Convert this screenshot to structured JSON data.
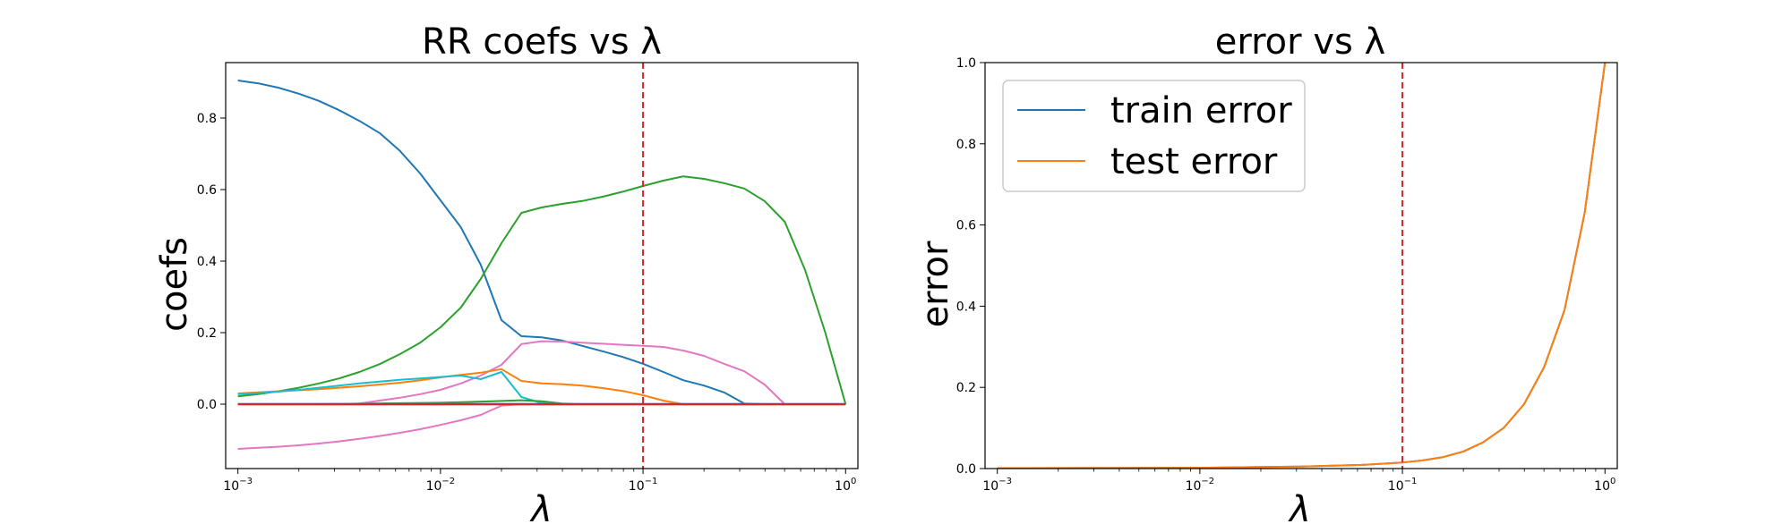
{
  "chart_data": [
    {
      "type": "line",
      "title": "RR coefs vs λ",
      "xlabel": "λ",
      "ylabel": "coefs",
      "xscale": "log",
      "xlim": [
        0.00087,
        1.15
      ],
      "ylim": [
        -0.18,
        0.955
      ],
      "xticks": [
        {
          "value": 0.001,
          "base": "10",
          "exp": "−3"
        },
        {
          "value": 0.01,
          "base": "10",
          "exp": "−2"
        },
        {
          "value": 0.1,
          "base": "10",
          "exp": "−1"
        },
        {
          "value": 1,
          "base": "10",
          "exp": "0"
        }
      ],
      "yticks": [
        {
          "value": 0.0,
          "label": "0.0"
        },
        {
          "value": 0.2,
          "label": "0.2"
        },
        {
          "value": 0.4,
          "label": "0.4"
        },
        {
          "value": 0.6,
          "label": "0.6"
        },
        {
          "value": 0.8,
          "label": "0.8"
        }
      ],
      "vline": {
        "x": 0.1,
        "color": "#d62728",
        "style": "dashed"
      },
      "grid": false,
      "series": [
        {
          "color": "#1f77b4",
          "x": [
            0.001,
            0.00126,
            0.00158,
            0.002,
            0.00251,
            0.00316,
            0.00398,
            0.00501,
            0.00631,
            0.00794,
            0.01,
            0.0126,
            0.0158,
            0.02,
            0.0251,
            0.0316,
            0.0398,
            0.0501,
            0.0631,
            0.0794,
            0.1,
            0.126,
            0.158,
            0.2,
            0.251,
            0.316,
            0.398,
            0.501,
            0.631,
            0.794,
            1.0
          ],
          "y": [
            0.905,
            0.897,
            0.885,
            0.868,
            0.848,
            0.822,
            0.792,
            0.758,
            0.708,
            0.645,
            0.57,
            0.495,
            0.39,
            0.235,
            0.19,
            0.187,
            0.178,
            0.163,
            0.148,
            0.132,
            0.113,
            0.09,
            0.067,
            0.052,
            0.033,
            0.002,
            0.0,
            0.0,
            0.0,
            0.0,
            0.0
          ]
        },
        {
          "color": "#2ca02c",
          "x": [
            0.001,
            0.00126,
            0.00158,
            0.002,
            0.00251,
            0.00316,
            0.00398,
            0.00501,
            0.00631,
            0.00794,
            0.01,
            0.0126,
            0.0158,
            0.02,
            0.0251,
            0.0316,
            0.0398,
            0.0501,
            0.0631,
            0.0794,
            0.1,
            0.126,
            0.158,
            0.2,
            0.251,
            0.316,
            0.398,
            0.501,
            0.631,
            0.794,
            1.0
          ],
          "y": [
            0.022,
            0.028,
            0.036,
            0.046,
            0.058,
            0.072,
            0.09,
            0.112,
            0.14,
            0.172,
            0.215,
            0.27,
            0.35,
            0.45,
            0.535,
            0.55,
            0.56,
            0.568,
            0.58,
            0.594,
            0.61,
            0.625,
            0.637,
            0.63,
            0.618,
            0.603,
            0.568,
            0.51,
            0.375,
            0.2,
            0.0
          ]
        },
        {
          "color": "#e377c2",
          "x": [
            0.001,
            0.00126,
            0.00158,
            0.002,
            0.00251,
            0.00316,
            0.00398,
            0.00501,
            0.00631,
            0.00794,
            0.01,
            0.0126,
            0.0158,
            0.02,
            0.0251,
            0.0316,
            0.0398,
            0.0501,
            0.0631,
            0.0794,
            0.1,
            0.126,
            0.158,
            0.2,
            0.251,
            0.316,
            0.398,
            0.501,
            0.631,
            0.794,
            1.0
          ],
          "y": [
            0.0,
            0.0,
            0.0,
            0.0,
            0.0,
            0.0,
            0.002,
            0.01,
            0.018,
            0.028,
            0.04,
            0.058,
            0.08,
            0.11,
            0.168,
            0.176,
            0.175,
            0.172,
            0.169,
            0.166,
            0.163,
            0.16,
            0.15,
            0.135,
            0.113,
            0.092,
            0.055,
            0.0,
            0.0,
            0.0,
            0.0
          ]
        },
        {
          "color": "#e377c2",
          "x": [
            0.001,
            0.00126,
            0.00158,
            0.002,
            0.00251,
            0.00316,
            0.00398,
            0.00501,
            0.00631,
            0.00794,
            0.01,
            0.0126,
            0.0158,
            0.02,
            0.0251,
            0.0316,
            0.0398,
            0.0501,
            0.0631,
            0.0794,
            0.1,
            0.126,
            0.158,
            0.2,
            0.251,
            0.316,
            0.398,
            0.501,
            0.631,
            0.794,
            1.0
          ],
          "y": [
            -0.125,
            -0.122,
            -0.119,
            -0.115,
            -0.11,
            -0.104,
            -0.097,
            -0.089,
            -0.08,
            -0.07,
            -0.058,
            -0.045,
            -0.03,
            -0.004,
            0.0,
            0.0,
            0.0,
            0.0,
            0.0,
            0.0,
            0.0,
            0.0,
            0.0,
            0.0,
            0.0,
            0.0,
            0.0,
            0.0,
            0.0,
            0.0,
            0.0
          ]
        },
        {
          "color": "#ff7f0e",
          "x": [
            0.001,
            0.00126,
            0.00158,
            0.002,
            0.00251,
            0.00316,
            0.00398,
            0.00501,
            0.00631,
            0.00794,
            0.01,
            0.0126,
            0.0158,
            0.02,
            0.0251,
            0.0316,
            0.0398,
            0.0501,
            0.0631,
            0.0794,
            0.1,
            0.126,
            0.158,
            0.2,
            0.251,
            0.316,
            0.398,
            0.501,
            0.631,
            0.794,
            1.0
          ],
          "y": [
            0.03,
            0.033,
            0.036,
            0.039,
            0.042,
            0.046,
            0.05,
            0.055,
            0.06,
            0.067,
            0.075,
            0.082,
            0.088,
            0.098,
            0.065,
            0.058,
            0.056,
            0.052,
            0.045,
            0.037,
            0.025,
            0.01,
            0.0,
            0.0,
            0.0,
            0.0,
            0.0,
            0.0,
            0.0,
            0.0,
            0.0
          ]
        },
        {
          "color": "#17becf",
          "x": [
            0.001,
            0.00126,
            0.00158,
            0.002,
            0.00251,
            0.00316,
            0.00398,
            0.00501,
            0.00631,
            0.00794,
            0.01,
            0.0126,
            0.0158,
            0.02,
            0.0251,
            0.0316,
            0.0398,
            0.0501,
            0.0631,
            0.0794,
            0.1,
            0.126,
            0.158,
            0.2,
            0.251,
            0.316,
            0.398,
            0.501,
            0.631,
            0.794,
            1.0
          ],
          "y": [
            0.028,
            0.031,
            0.035,
            0.04,
            0.046,
            0.052,
            0.058,
            0.063,
            0.068,
            0.072,
            0.076,
            0.08,
            0.07,
            0.09,
            0.02,
            0.003,
            0.0,
            0.0,
            0.0,
            0.0,
            0.0,
            0.0,
            0.0,
            0.0,
            0.0,
            0.0,
            0.0,
            0.0,
            0.0,
            0.0,
            0.0
          ]
        },
        {
          "color": "#2ca02c",
          "x": [
            0.001,
            0.0032,
            0.01,
            0.018,
            0.0251,
            0.0316,
            0.0398,
            0.05,
            1.0
          ],
          "y": [
            0.0,
            0.001,
            0.004,
            0.008,
            0.011,
            0.008,
            0.002,
            0.0,
            0.0
          ]
        },
        {
          "color": "#7f7f7f",
          "x": [
            0.001,
            1.0
          ],
          "y": [
            -0.001,
            -0.001
          ]
        },
        {
          "color": "#9467bd",
          "x": [
            0.001,
            1.0
          ],
          "y": [
            0.001,
            0.001
          ]
        },
        {
          "color": "#8c564b",
          "x": [
            0.001,
            1.0
          ],
          "y": [
            0.0,
            0.0
          ]
        },
        {
          "color": "#d62728",
          "x": [
            0.001,
            1.0
          ],
          "y": [
            0.0,
            0.0
          ]
        }
      ]
    },
    {
      "type": "line",
      "title": "error vs λ",
      "xlabel": "λ",
      "ylabel": "error",
      "xscale": "log",
      "xlim": [
        0.00087,
        1.15
      ],
      "ylim": [
        0.0,
        1.0
      ],
      "xticks": [
        {
          "value": 0.001,
          "base": "10",
          "exp": "−3"
        },
        {
          "value": 0.01,
          "base": "10",
          "exp": "−2"
        },
        {
          "value": 0.1,
          "base": "10",
          "exp": "−1"
        },
        {
          "value": 1,
          "base": "10",
          "exp": "0"
        }
      ],
      "yticks": [
        {
          "value": 0.0,
          "label": "0.0"
        },
        {
          "value": 0.2,
          "label": "0.2"
        },
        {
          "value": 0.4,
          "label": "0.4"
        },
        {
          "value": 0.6,
          "label": "0.6"
        },
        {
          "value": 0.8,
          "label": "0.8"
        },
        {
          "value": 1.0,
          "label": "1.0"
        }
      ],
      "vline": {
        "x": 0.1,
        "color": "#d62728",
        "style": "dashed"
      },
      "grid": false,
      "legend": {
        "placement": "upper-left"
      },
      "series": [
        {
          "name": "train error",
          "color": "#1f77b4",
          "x": [
            0.001,
            0.01,
            0.0316,
            0.0631,
            0.1,
            0.126,
            0.158,
            0.2,
            0.251,
            0.316,
            0.398,
            0.501,
            0.631,
            0.794,
            1.0
          ],
          "y": [
            0.001,
            0.002,
            0.005,
            0.009,
            0.015,
            0.02,
            0.028,
            0.042,
            0.065,
            0.1,
            0.158,
            0.25,
            0.39,
            0.63,
            1.0
          ]
        },
        {
          "name": "test error",
          "color": "#ff7f0e",
          "x": [
            0.001,
            0.01,
            0.0316,
            0.0631,
            0.1,
            0.126,
            0.158,
            0.2,
            0.251,
            0.316,
            0.398,
            0.501,
            0.631,
            0.794,
            1.0
          ],
          "y": [
            0.001,
            0.002,
            0.005,
            0.009,
            0.015,
            0.02,
            0.028,
            0.042,
            0.065,
            0.1,
            0.158,
            0.25,
            0.39,
            0.63,
            1.0
          ]
        }
      ]
    }
  ]
}
